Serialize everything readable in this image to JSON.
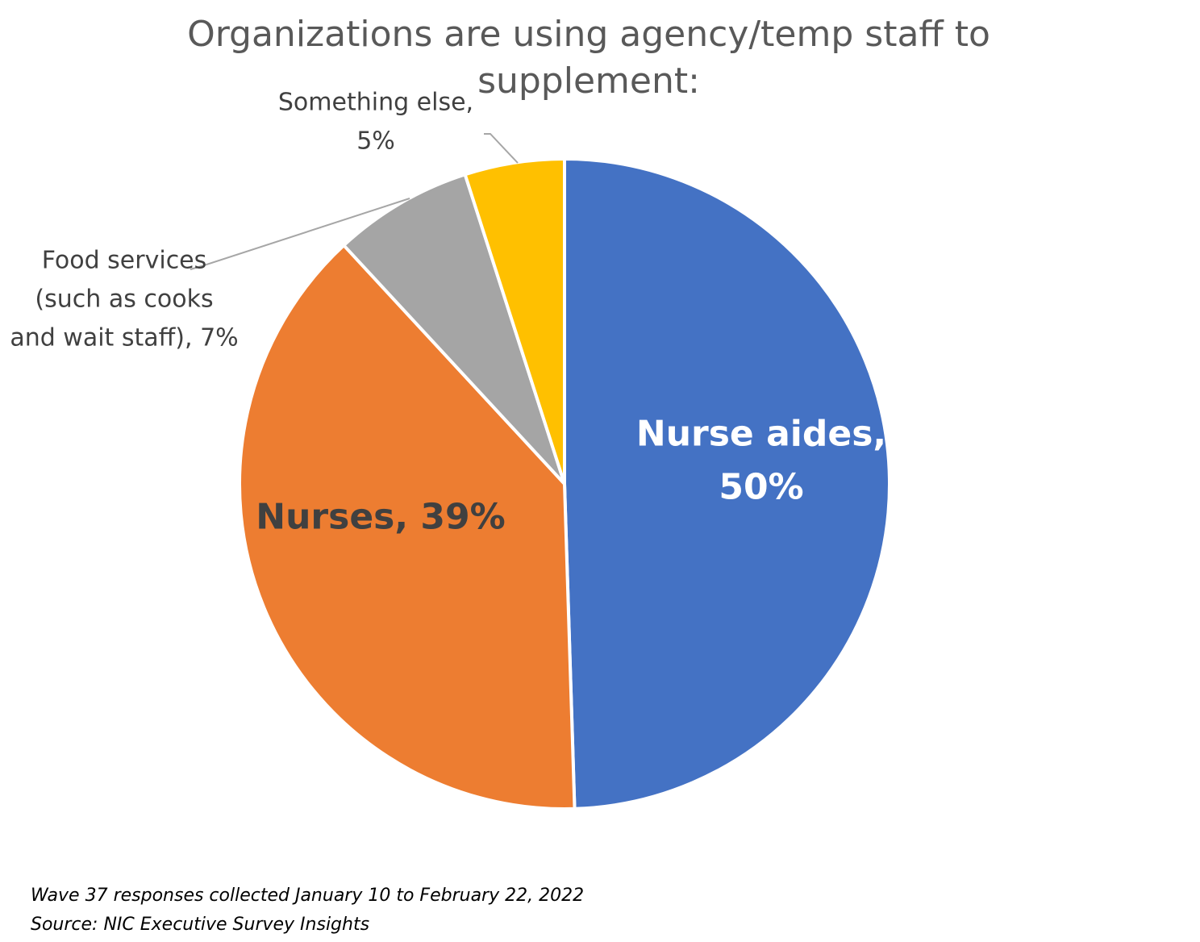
{
  "chart_data": {
    "type": "pie",
    "title": "Organizations are using agency/temp staff to supplement:",
    "slices": [
      {
        "label": "Nurse aides",
        "value": 50,
        "display": [
          "Nurse aides,",
          "50%"
        ],
        "color": "#4472C4",
        "label_color": "#FFFFFF"
      },
      {
        "label": "Nurses",
        "value": 39,
        "display": [
          "Nurses, 39%"
        ],
        "color": "#ED7D31",
        "label_color": "#404040"
      },
      {
        "label": "Food services (such as cooks and wait staff)",
        "value": 7,
        "display": [
          "Food services",
          "(such as cooks",
          "and wait staff), 7%"
        ],
        "color": "#A5A5A5",
        "label_color": "#404040"
      },
      {
        "label": "Something else",
        "value": 5,
        "display": [
          "Something else,",
          "5%"
        ],
        "color": "#FFC000",
        "label_color": "#404040"
      }
    ],
    "legend": "none"
  },
  "footnotes": [
    "Wave 37 responses collected January 10 to February 22, 2022",
    "Source: NIC Executive Survey Insights"
  ]
}
